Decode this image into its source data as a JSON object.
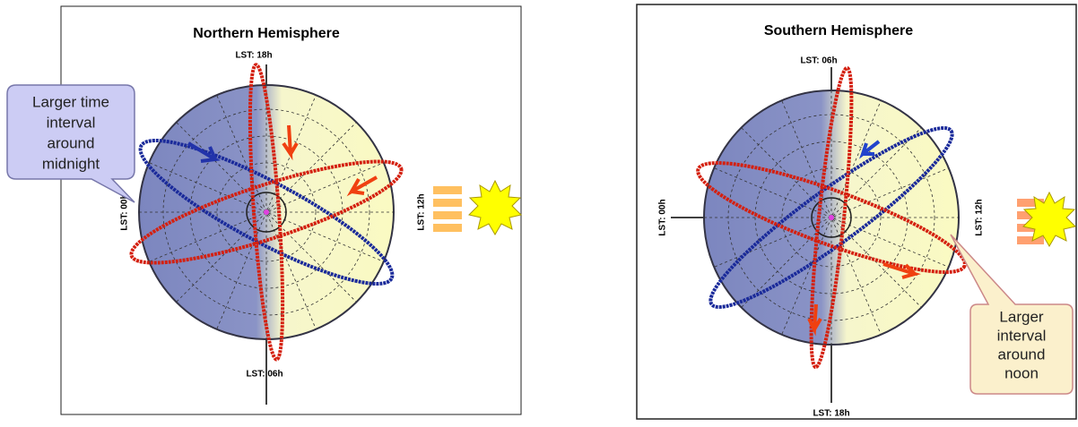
{
  "panels": [
    {
      "title": "Northern Hemisphere",
      "top": "LST: 18h",
      "bottom": "LST: 06h",
      "left": "LST: 00h",
      "right": "LST: 12h",
      "callout": [
        "Larger time",
        "interval",
        "around",
        "midnight"
      ]
    },
    {
      "title": "Southern Hemisphere",
      "top": "LST: 06h",
      "bottom": "LST: 18h",
      "left": "LST: 00h",
      "right": "LST: 12h",
      "callout": [
        "Larger",
        "interval",
        "around",
        "noon"
      ]
    }
  ]
}
